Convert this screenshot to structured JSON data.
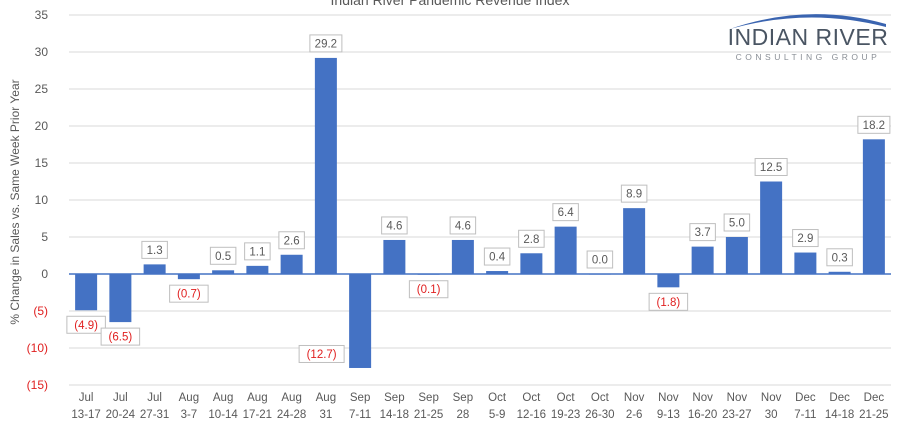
{
  "chart_data": {
    "type": "bar",
    "title": "Indian River Pandemic Revenue Index",
    "xlabel": "",
    "ylabel": "% Change in Sales vs. Same Week Prior Year",
    "ylim": [
      -15,
      35
    ],
    "yticks": [
      35,
      30,
      25,
      20,
      15,
      10,
      5,
      0,
      -5,
      -10,
      -15
    ],
    "ytick_labels": [
      "35",
      "30",
      "25",
      "20",
      "15",
      "10",
      "5",
      "0",
      "(5)",
      "(10)",
      "(15)"
    ],
    "grid": true,
    "categories": [
      [
        "Jul",
        "13-17"
      ],
      [
        "Jul",
        "20-24"
      ],
      [
        "Jul",
        "27-31"
      ],
      [
        "Aug",
        "3-7"
      ],
      [
        "Aug",
        "10-14"
      ],
      [
        "Aug",
        "17-21"
      ],
      [
        "Aug",
        "24-28"
      ],
      [
        "Aug",
        "31"
      ],
      [
        "Sep",
        "7-11"
      ],
      [
        "Sep",
        "14-18"
      ],
      [
        "Sep",
        "21-25"
      ],
      [
        "Sep",
        "28"
      ],
      [
        "Oct",
        "5-9"
      ],
      [
        "Oct",
        "12-16"
      ],
      [
        "Oct",
        "19-23"
      ],
      [
        "Oct",
        "26-30"
      ],
      [
        "Nov",
        "2-6"
      ],
      [
        "Nov",
        "9-13"
      ],
      [
        "Nov",
        "16-20"
      ],
      [
        "Nov",
        "23-27"
      ],
      [
        "Nov",
        "30"
      ],
      [
        "Dec",
        "7-11"
      ],
      [
        "Dec",
        "14-18"
      ],
      [
        "Dec",
        "21-25"
      ]
    ],
    "values": [
      -4.9,
      -6.5,
      1.3,
      -0.7,
      0.5,
      1.1,
      2.6,
      29.2,
      -12.7,
      4.6,
      -0.1,
      4.6,
      0.4,
      2.8,
      6.4,
      0.0,
      8.9,
      -1.8,
      3.7,
      5.0,
      12.5,
      2.9,
      0.3,
      18.2
    ],
    "data_labels": [
      "(4.9)",
      "(6.5)",
      "1.3",
      "(0.7)",
      "0.5",
      "1.1",
      "2.6",
      "29.2",
      "(12.7)",
      "4.6",
      "(0.1)",
      "4.6",
      "0.4",
      "2.8",
      "6.4",
      "0.0",
      "8.9",
      "(1.8)",
      "3.7",
      "5.0",
      "12.5",
      "2.9",
      "0.3",
      "18.2"
    ],
    "colors": {
      "bar": "#4472c4",
      "negative_text": "#e02020",
      "axis_text": "#595959",
      "grid": "#d9d9d9"
    }
  },
  "logo": {
    "main": "INDIAN RIVER",
    "sub": "CONSULTING GROUP"
  }
}
